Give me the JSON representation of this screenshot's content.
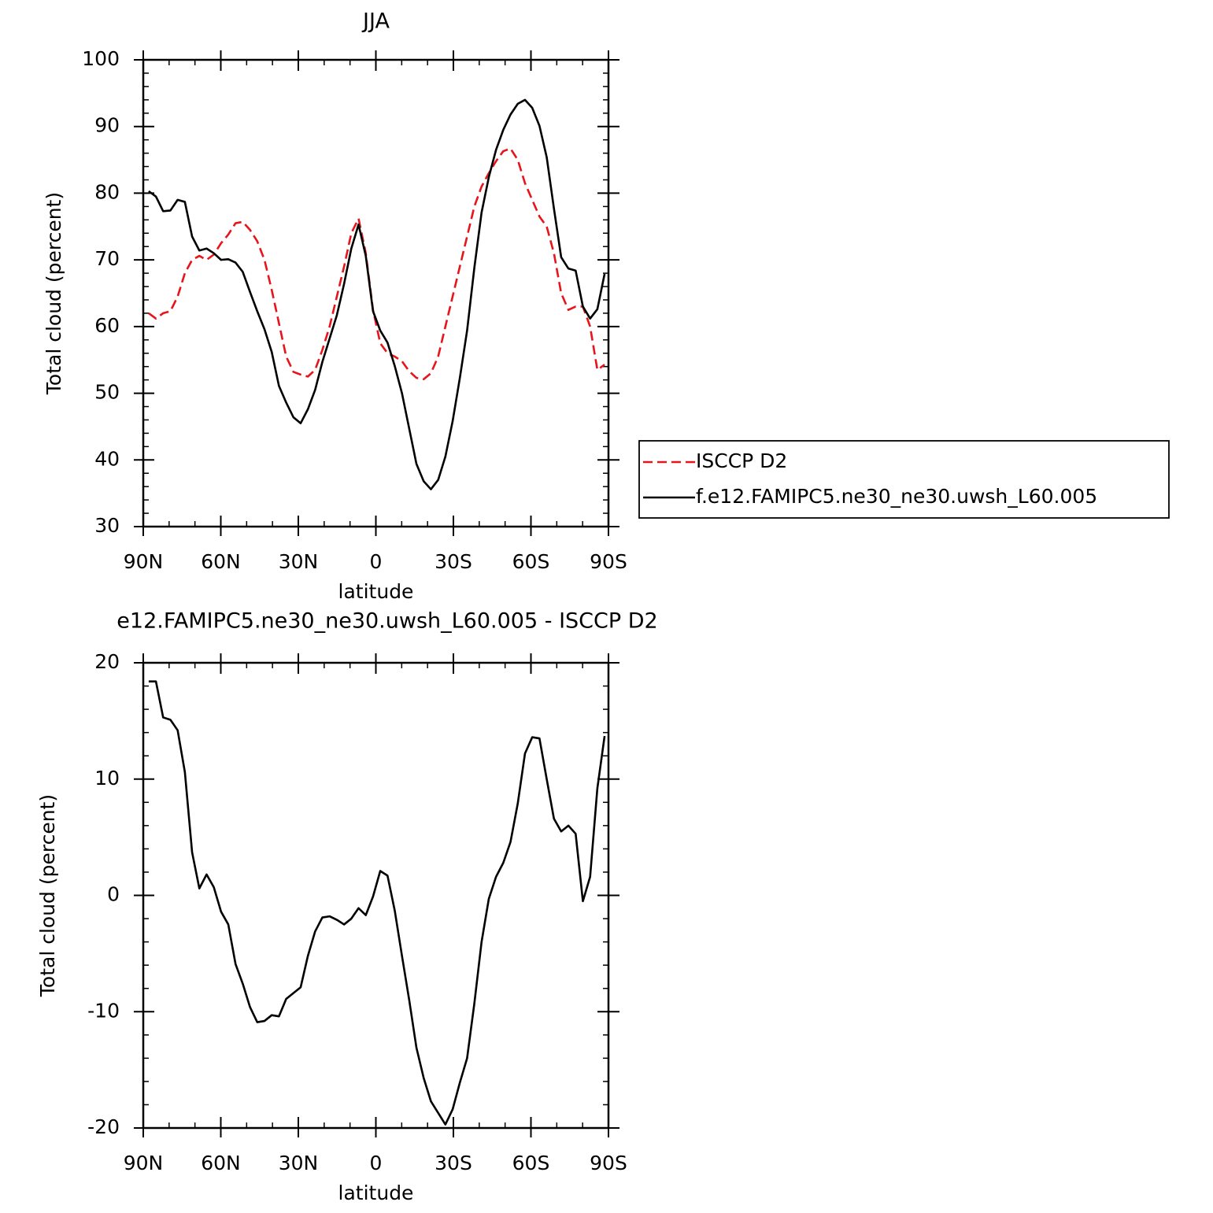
{
  "chart_data": [
    {
      "type": "line",
      "title": "JJA",
      "xlabel": "latitude",
      "ylabel": "Total cloud (percent)",
      "x": [
        87.9,
        85.1,
        82.3,
        79.5,
        76.7,
        73.9,
        71.1,
        68.3,
        65.5,
        62.7,
        59.9,
        57.1,
        54.3,
        51.5,
        48.7,
        45.9,
        43.1,
        40.3,
        37.5,
        34.7,
        31.9,
        29.1,
        26.3,
        23.5,
        20.7,
        17.9,
        15.1,
        12.3,
        9.5,
        6.7,
        3.9,
        1.1,
        -1.7,
        -4.5,
        -7.3,
        -10.1,
        -12.9,
        -15.7,
        -18.5,
        -21.3,
        -24.1,
        -26.9,
        -29.7,
        -32.5,
        -35.3,
        -38.1,
        -40.9,
        -43.7,
        -46.5,
        -49.3,
        -52.1,
        -54.9,
        -57.7,
        -60.5,
        -63.3,
        -66.1,
        -68.9,
        -71.7,
        -74.5,
        -77.3,
        -80.1,
        -82.9,
        -85.7,
        -88.5
      ],
      "series": [
        {
          "name": "ISCCP D2",
          "color": "#e8141b",
          "dash": "dashed",
          "values": [
            62,
            61.2,
            62,
            62.3,
            64.5,
            68,
            70,
            70.6,
            70,
            70.8,
            72.5,
            73.8,
            75.5,
            75.7,
            74.5,
            72.8,
            70,
            65.5,
            60.5,
            55.5,
            53.2,
            52.8,
            52.5,
            53.5,
            56.5,
            60,
            64.5,
            69,
            74,
            76.2,
            71,
            62.5,
            57.5,
            56,
            55.5,
            54.8,
            53.3,
            52.3,
            52.1,
            53,
            55.5,
            60,
            64.5,
            69,
            73.5,
            78,
            81,
            83,
            84.8,
            86.3,
            86.7,
            85,
            81.5,
            79,
            76.5,
            75,
            71,
            65,
            62.5,
            63,
            63,
            60,
            53.5,
            54.3
          ]
        },
        {
          "name": "f.e12.FAMIPC5.ne30_ne30.uwsh_L60.005",
          "color": "#000000",
          "dash": "solid",
          "values": [
            80.3,
            79.5,
            77.3,
            77.4,
            79,
            78.7,
            73.5,
            71.4,
            71.7,
            71,
            70,
            70.1,
            69.6,
            68.2,
            65.2,
            62.3,
            59.6,
            56.2,
            51.1,
            48.6,
            46.4,
            45.5,
            47.6,
            50.5,
            54.7,
            58.2,
            61.7,
            66.4,
            71.7,
            75.3,
            70.6,
            62.3,
            59.4,
            57.6,
            54.1,
            50,
            44.7,
            39.4,
            36.8,
            35.6,
            37,
            40.5,
            45.8,
            52.3,
            59.4,
            68.8,
            77.1,
            82.4,
            86.5,
            89.5,
            91.8,
            93.4,
            94,
            92.8,
            90.1,
            85.4,
            77.7,
            70.4,
            68.7,
            68.4,
            63,
            61.2,
            62.6,
            67.9
          ]
        }
      ],
      "xlim": [
        90,
        -90
      ],
      "xticks": [
        {
          "value": 90,
          "label": "90N"
        },
        {
          "value": 60,
          "label": "60N"
        },
        {
          "value": 30,
          "label": "30N"
        },
        0,
        {
          "value": -30,
          "label": "30S"
        },
        {
          "value": -60,
          "label": "60S"
        },
        {
          "value": -90,
          "label": "90S"
        }
      ],
      "xminor_step": 10,
      "ylim": [
        30,
        100
      ],
      "yticks": [
        30,
        40,
        50,
        60,
        70,
        80,
        90,
        100
      ],
      "yminor_step": 2,
      "legend": "right"
    },
    {
      "type": "line",
      "title": "e12.FAMIPC5.ne30_ne30.uwsh_L60.005 - ISCCP D2",
      "xlabel": "latitude",
      "ylabel": "Total cloud (percent)",
      "x": [
        87.9,
        85.1,
        82.3,
        79.5,
        76.7,
        73.9,
        71.1,
        68.3,
        65.5,
        62.7,
        59.9,
        57.1,
        54.3,
        51.5,
        48.7,
        45.9,
        43.1,
        40.3,
        37.5,
        34.7,
        31.9,
        29.1,
        26.3,
        23.5,
        20.7,
        17.9,
        15.1,
        12.3,
        9.5,
        6.7,
        3.9,
        1.1,
        -1.7,
        -4.5,
        -7.3,
        -10.1,
        -12.9,
        -15.7,
        -18.5,
        -21.3,
        -24.1,
        -26.9,
        -29.7,
        -32.5,
        -35.3,
        -38.1,
        -40.9,
        -43.7,
        -46.5,
        -49.3,
        -52.1,
        -54.9,
        -57.7,
        -60.5,
        -63.3,
        -66.1,
        -68.9,
        -71.7,
        -74.5,
        -77.3,
        -80.1,
        -82.9,
        -85.7,
        -88.5
      ],
      "series": [
        {
          "color": "#000000",
          "dash": "solid",
          "values": [
            18.4,
            18.4,
            15.3,
            15.1,
            14.2,
            10.6,
            3.7,
            0.6,
            1.8,
            0.7,
            -1.4,
            -2.5,
            -5.9,
            -7.6,
            -9.6,
            -10.9,
            -10.8,
            -10.3,
            -10.4,
            -8.9,
            -8.4,
            -7.9,
            -5.2,
            -3.1,
            -1.9,
            -1.8,
            -2.1,
            -2.5,
            -2.0,
            -1.1,
            -1.7,
            -0.1,
            2.1,
            1.7,
            -1.3,
            -5.2,
            -9.0,
            -13.1,
            -15.7,
            -17.7,
            -18.7,
            -19.7,
            -18.4,
            -16.1,
            -14.0,
            -9.3,
            -4.0,
            -0.3,
            1.6,
            2.8,
            4.6,
            7.9,
            12.2,
            13.6,
            13.5,
            10.0,
            6.6,
            5.5,
            6.0,
            5.3,
            -0.5,
            1.6,
            9.2,
            13.7
          ]
        }
      ],
      "xlim": [
        90,
        -90
      ],
      "xticks": [
        {
          "value": 90,
          "label": "90N"
        },
        {
          "value": 60,
          "label": "60N"
        },
        {
          "value": 30,
          "label": "30N"
        },
        0,
        {
          "value": -30,
          "label": "30S"
        },
        {
          "value": -60,
          "label": "60S"
        },
        {
          "value": -90,
          "label": "90S"
        }
      ],
      "xminor_step": 10,
      "ylim": [
        -20,
        20
      ],
      "yticks": [
        -20,
        -10,
        0,
        10,
        20
      ],
      "yminor_step": 2
    }
  ]
}
